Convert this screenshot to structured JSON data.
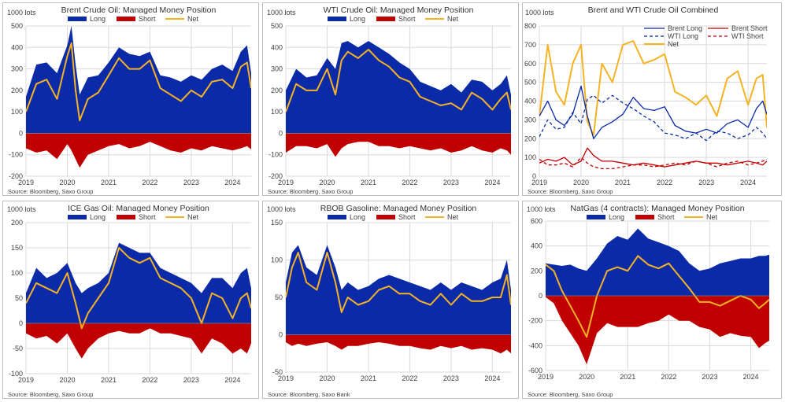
{
  "colors": {
    "long": "#0a2aa8",
    "short": "#c00000",
    "net": "#f5b324",
    "grid": "#d9d9d9",
    "border": "#bfbfbf",
    "text": "#404040"
  },
  "chart_data": [
    {
      "type": "area",
      "title": "Brent Crude Oil: Managed Money Position",
      "unit_label": "1000 lots",
      "source": "Source: Bloomberg, Saxo Group",
      "ylim": [
        -200,
        500
      ],
      "yticks": [
        -200,
        -100,
        0,
        100,
        200,
        300,
        400,
        500
      ],
      "ytick_labels": [
        "-200",
        "-100",
        "0",
        "100",
        "200",
        "300",
        "400",
        "500"
      ],
      "xlim": [
        2019.0,
        2024.45
      ],
      "xticks": [
        2019,
        2020,
        2021,
        2022,
        2023,
        2024
      ],
      "xtick_labels": [
        "2019",
        "2020",
        "2021",
        "2022",
        "2023",
        "2024"
      ],
      "legend": [
        "Long",
        "Short",
        "Net"
      ],
      "x": [
        2019.0,
        2019.25,
        2019.5,
        2019.75,
        2020.0,
        2020.1,
        2020.2,
        2020.3,
        2020.5,
        2020.75,
        2021.0,
        2021.25,
        2021.5,
        2021.75,
        2022.0,
        2022.25,
        2022.5,
        2022.75,
        2023.0,
        2023.25,
        2023.5,
        2023.75,
        2024.0,
        2024.2,
        2024.35,
        2024.45
      ],
      "series": [
        {
          "name": "Long",
          "values": [
            170,
            320,
            330,
            280,
            410,
            500,
            320,
            180,
            260,
            270,
            330,
            400,
            370,
            360,
            380,
            270,
            260,
            240,
            270,
            250,
            300,
            320,
            290,
            380,
            410,
            280
          ]
        },
        {
          "name": "Short",
          "values": [
            -70,
            -90,
            -80,
            -120,
            -50,
            -80,
            -120,
            -160,
            -100,
            -80,
            -60,
            -50,
            -70,
            -60,
            -40,
            -60,
            -80,
            -90,
            -70,
            -80,
            -60,
            -70,
            -80,
            -70,
            -60,
            -75
          ]
        },
        {
          "name": "Net",
          "values": [
            100,
            230,
            250,
            160,
            360,
            420,
            200,
            60,
            160,
            190,
            270,
            350,
            300,
            300,
            340,
            210,
            180,
            150,
            200,
            170,
            240,
            250,
            210,
            310,
            330,
            210
          ]
        }
      ]
    },
    {
      "type": "area",
      "title": "WTI Crude Oil: Managed Money Position",
      "unit_label": "1000 lots",
      "source": "Source: Bloomberg, Saxo Group",
      "ylim": [
        -200,
        500
      ],
      "yticks": [
        -200,
        -100,
        0,
        100,
        200,
        300,
        400,
        500
      ],
      "ytick_labels": [
        "-200",
        "-100",
        "0",
        "100",
        "200",
        "300",
        "400",
        "500"
      ],
      "xlim": [
        2019.0,
        2024.45
      ],
      "xticks": [
        2019,
        2020,
        2021,
        2022,
        2023,
        2024
      ],
      "xtick_labels": [
        "2019",
        "2020",
        "2021",
        "2022",
        "2023",
        "2024"
      ],
      "legend": [
        "Long",
        "Short",
        "Net"
      ],
      "x": [
        2019.0,
        2019.25,
        2019.5,
        2019.75,
        2020.0,
        2020.2,
        2020.35,
        2020.5,
        2020.75,
        2021.0,
        2021.25,
        2021.5,
        2021.75,
        2022.0,
        2022.25,
        2022.5,
        2022.75,
        2023.0,
        2023.25,
        2023.5,
        2023.75,
        2024.0,
        2024.2,
        2024.35,
        2024.45
      ],
      "series": [
        {
          "name": "Long",
          "values": [
            200,
            300,
            260,
            270,
            350,
            300,
            420,
            430,
            400,
            430,
            400,
            370,
            330,
            300,
            240,
            220,
            200,
            230,
            190,
            250,
            240,
            200,
            230,
            270,
            180
          ]
        },
        {
          "name": "Short",
          "values": [
            -90,
            -60,
            -60,
            -70,
            -50,
            -110,
            -70,
            -50,
            -40,
            -40,
            -60,
            -60,
            -70,
            -60,
            -70,
            -80,
            -70,
            -90,
            -80,
            -60,
            -80,
            -90,
            -70,
            -80,
            -100
          ]
        },
        {
          "name": "Net",
          "values": [
            100,
            230,
            200,
            200,
            300,
            180,
            340,
            380,
            350,
            390,
            340,
            310,
            260,
            240,
            170,
            150,
            130,
            140,
            110,
            190,
            160,
            110,
            160,
            190,
            110
          ]
        }
      ]
    },
    {
      "type": "line",
      "title": "Brent and WTI Crude Oil Combined",
      "unit_label": "1000 lots",
      "source": "Source: Bloomberg, Saxo Group",
      "ylim": [
        0,
        800
      ],
      "yticks": [
        0,
        100,
        200,
        300,
        400,
        500,
        600,
        700,
        800
      ],
      "ytick_labels": [
        "0",
        "100",
        "200",
        "300",
        "400",
        "500",
        "600",
        "700",
        "800"
      ],
      "xlim": [
        2019.0,
        2024.45
      ],
      "xticks": [
        2019,
        2020,
        2021,
        2022,
        2023,
        2024
      ],
      "xtick_labels": [
        "2019",
        "2020",
        "2021",
        "2022",
        "2023",
        "2024"
      ],
      "legend": [
        "Brent Long",
        "Brent Short",
        "WTI Long",
        "WTI Short",
        "Net"
      ],
      "x": [
        2019.0,
        2019.2,
        2019.4,
        2019.6,
        2019.8,
        2020.0,
        2020.15,
        2020.3,
        2020.5,
        2020.75,
        2021.0,
        2021.25,
        2021.5,
        2021.75,
        2022.0,
        2022.25,
        2022.5,
        2022.75,
        2023.0,
        2023.25,
        2023.5,
        2023.75,
        2024.0,
        2024.2,
        2024.35,
        2024.45
      ],
      "series": [
        {
          "name": "Brent Long",
          "values": [
            320,
            400,
            300,
            270,
            330,
            480,
            320,
            200,
            260,
            290,
            330,
            420,
            360,
            350,
            370,
            270,
            240,
            230,
            250,
            230,
            280,
            300,
            260,
            360,
            400,
            330
          ]
        },
        {
          "name": "Brent Short",
          "values": [
            70,
            90,
            80,
            100,
            60,
            80,
            150,
            110,
            80,
            80,
            70,
            60,
            70,
            60,
            50,
            60,
            70,
            80,
            70,
            70,
            60,
            70,
            80,
            70,
            60,
            80
          ]
        },
        {
          "name": "WTI Long",
          "values": [
            210,
            300,
            250,
            260,
            340,
            280,
            410,
            430,
            390,
            430,
            390,
            360,
            320,
            290,
            230,
            220,
            200,
            230,
            190,
            240,
            230,
            200,
            220,
            260,
            230,
            200
          ]
        },
        {
          "name": "WTI Short",
          "values": [
            90,
            60,
            60,
            70,
            50,
            100,
            70,
            50,
            40,
            40,
            50,
            60,
            60,
            50,
            60,
            70,
            60,
            80,
            70,
            50,
            70,
            80,
            60,
            70,
            80,
            90
          ]
        },
        {
          "name": "Net",
          "values": [
            320,
            700,
            450,
            380,
            600,
            700,
            290,
            220,
            600,
            500,
            700,
            720,
            600,
            620,
            650,
            450,
            420,
            380,
            430,
            320,
            520,
            560,
            380,
            520,
            540,
            260
          ]
        }
      ]
    },
    {
      "type": "area",
      "title": "ICE Gas Oil: Managed Money Position",
      "unit_label": "1000 lots",
      "source": "Source: Bloomberg, Saxo Group",
      "ylim": [
        -100,
        200
      ],
      "yticks": [
        -100,
        -50,
        0,
        50,
        100,
        150,
        200
      ],
      "ytick_labels": [
        "-100",
        "-50",
        "0",
        "50",
        "100",
        "150",
        "200"
      ],
      "xlim": [
        2019.0,
        2024.45
      ],
      "xticks": [
        2019,
        2020,
        2021,
        2022,
        2023,
        2024
      ],
      "xtick_labels": [
        "2019",
        "2020",
        "2021",
        "2022",
        "2023",
        "2024"
      ],
      "legend": [
        "Long",
        "Short",
        "Net"
      ],
      "x": [
        2019.0,
        2019.25,
        2019.5,
        2019.75,
        2020.0,
        2020.2,
        2020.35,
        2020.5,
        2020.75,
        2021.0,
        2021.25,
        2021.5,
        2021.75,
        2022.0,
        2022.25,
        2022.5,
        2022.75,
        2023.0,
        2023.25,
        2023.5,
        2023.75,
        2024.0,
        2024.2,
        2024.35,
        2024.45
      ],
      "series": [
        {
          "name": "Long",
          "values": [
            60,
            110,
            90,
            100,
            120,
            80,
            60,
            70,
            80,
            100,
            160,
            150,
            140,
            140,
            110,
            100,
            90,
            80,
            60,
            90,
            90,
            70,
            100,
            110,
            70
          ]
        },
        {
          "name": "Short",
          "values": [
            -20,
            -30,
            -25,
            -40,
            -20,
            -50,
            -70,
            -50,
            -30,
            -20,
            -15,
            -20,
            -20,
            -10,
            -20,
            -20,
            -25,
            -30,
            -60,
            -30,
            -40,
            -60,
            -50,
            -60,
            -40
          ]
        },
        {
          "name": "Net",
          "values": [
            40,
            80,
            70,
            60,
            100,
            40,
            -10,
            20,
            50,
            80,
            150,
            130,
            120,
            130,
            90,
            80,
            70,
            50,
            0,
            60,
            50,
            10,
            50,
            60,
            30
          ]
        }
      ]
    },
    {
      "type": "area",
      "title": "RBOB Gasoline: Managed Money Position",
      "unit_label": "1000 lots",
      "source": "Source: Bloomberg, Saxo Bank",
      "ylim": [
        -50,
        150
      ],
      "yticks": [
        -50,
        0,
        50,
        100,
        150
      ],
      "ytick_labels": [
        "-50",
        "0",
        "50",
        "100",
        "150"
      ],
      "xlim": [
        2019.0,
        2024.45
      ],
      "xticks": [
        2019,
        2020,
        2021,
        2022,
        2023,
        2024
      ],
      "xtick_labels": [
        "2019",
        "2020",
        "2021",
        "2022",
        "2023",
        "2024"
      ],
      "legend": [
        "Long",
        "Short",
        "Net"
      ],
      "x": [
        2019.0,
        2019.15,
        2019.3,
        2019.5,
        2019.75,
        2020.0,
        2020.2,
        2020.35,
        2020.5,
        2020.75,
        2021.0,
        2021.25,
        2021.5,
        2021.75,
        2022.0,
        2022.25,
        2022.5,
        2022.75,
        2023.0,
        2023.25,
        2023.5,
        2023.75,
        2024.0,
        2024.2,
        2024.35,
        2024.45
      ],
      "series": [
        {
          "name": "Long",
          "values": [
            70,
            110,
            120,
            90,
            80,
            120,
            90,
            60,
            70,
            60,
            65,
            75,
            80,
            75,
            70,
            65,
            60,
            70,
            60,
            70,
            65,
            60,
            70,
            75,
            100,
            60
          ]
        },
        {
          "name": "Short",
          "values": [
            -10,
            -15,
            -12,
            -15,
            -12,
            -10,
            -15,
            -20,
            -15,
            -15,
            -12,
            -10,
            -12,
            -15,
            -15,
            -18,
            -20,
            -15,
            -18,
            -15,
            -20,
            -18,
            -20,
            -25,
            -20,
            -25
          ]
        },
        {
          "name": "Net",
          "values": [
            50,
            90,
            110,
            70,
            60,
            110,
            70,
            30,
            50,
            40,
            45,
            60,
            65,
            55,
            55,
            45,
            40,
            55,
            40,
            55,
            45,
            45,
            50,
            50,
            80,
            40
          ]
        }
      ]
    },
    {
      "type": "area",
      "title": "NatGas (4 contracts): Managed Money Position",
      "unit_label": "1000 lots",
      "source": "Source: Bloomberg, Saxo Group",
      "ylim": [
        -600,
        600
      ],
      "yticks": [
        -600,
        -400,
        -200,
        0,
        200,
        400,
        600
      ],
      "ytick_labels": [
        "-600",
        "-400",
        "-200",
        "0",
        "200",
        "400",
        "600"
      ],
      "xlim": [
        2019.0,
        2024.45
      ],
      "xticks": [
        2019,
        2020,
        2021,
        2022,
        2023,
        2024
      ],
      "xtick_labels": [
        "2019",
        "2020",
        "2021",
        "2022",
        "2023",
        "2024"
      ],
      "legend": [
        "Long",
        "Short",
        "Net"
      ],
      "x": [
        2019.0,
        2019.2,
        2019.4,
        2019.6,
        2019.8,
        2020.0,
        2020.25,
        2020.5,
        2020.75,
        2021.0,
        2021.25,
        2021.5,
        2021.75,
        2022.0,
        2022.25,
        2022.5,
        2022.75,
        2023.0,
        2023.25,
        2023.5,
        2023.75,
        2024.0,
        2024.2,
        2024.35,
        2024.45
      ],
      "series": [
        {
          "name": "Long",
          "values": [
            260,
            250,
            240,
            250,
            220,
            200,
            300,
            420,
            480,
            450,
            540,
            460,
            430,
            400,
            360,
            260,
            200,
            220,
            260,
            280,
            300,
            300,
            320,
            320,
            330
          ]
        },
        {
          "name": "Short",
          "values": [
            -10,
            -60,
            -200,
            -300,
            -400,
            -550,
            -300,
            -220,
            -250,
            -250,
            -250,
            -220,
            -200,
            -150,
            -200,
            -200,
            -250,
            -270,
            -330,
            -300,
            -320,
            -330,
            -420,
            -380,
            -360
          ]
        },
        {
          "name": "Net",
          "values": [
            250,
            200,
            40,
            -80,
            -200,
            -330,
            0,
            200,
            230,
            200,
            320,
            250,
            220,
            260,
            160,
            60,
            -50,
            -50,
            -80,
            -40,
            0,
            -30,
            -100,
            -60,
            -30
          ]
        }
      ]
    }
  ]
}
